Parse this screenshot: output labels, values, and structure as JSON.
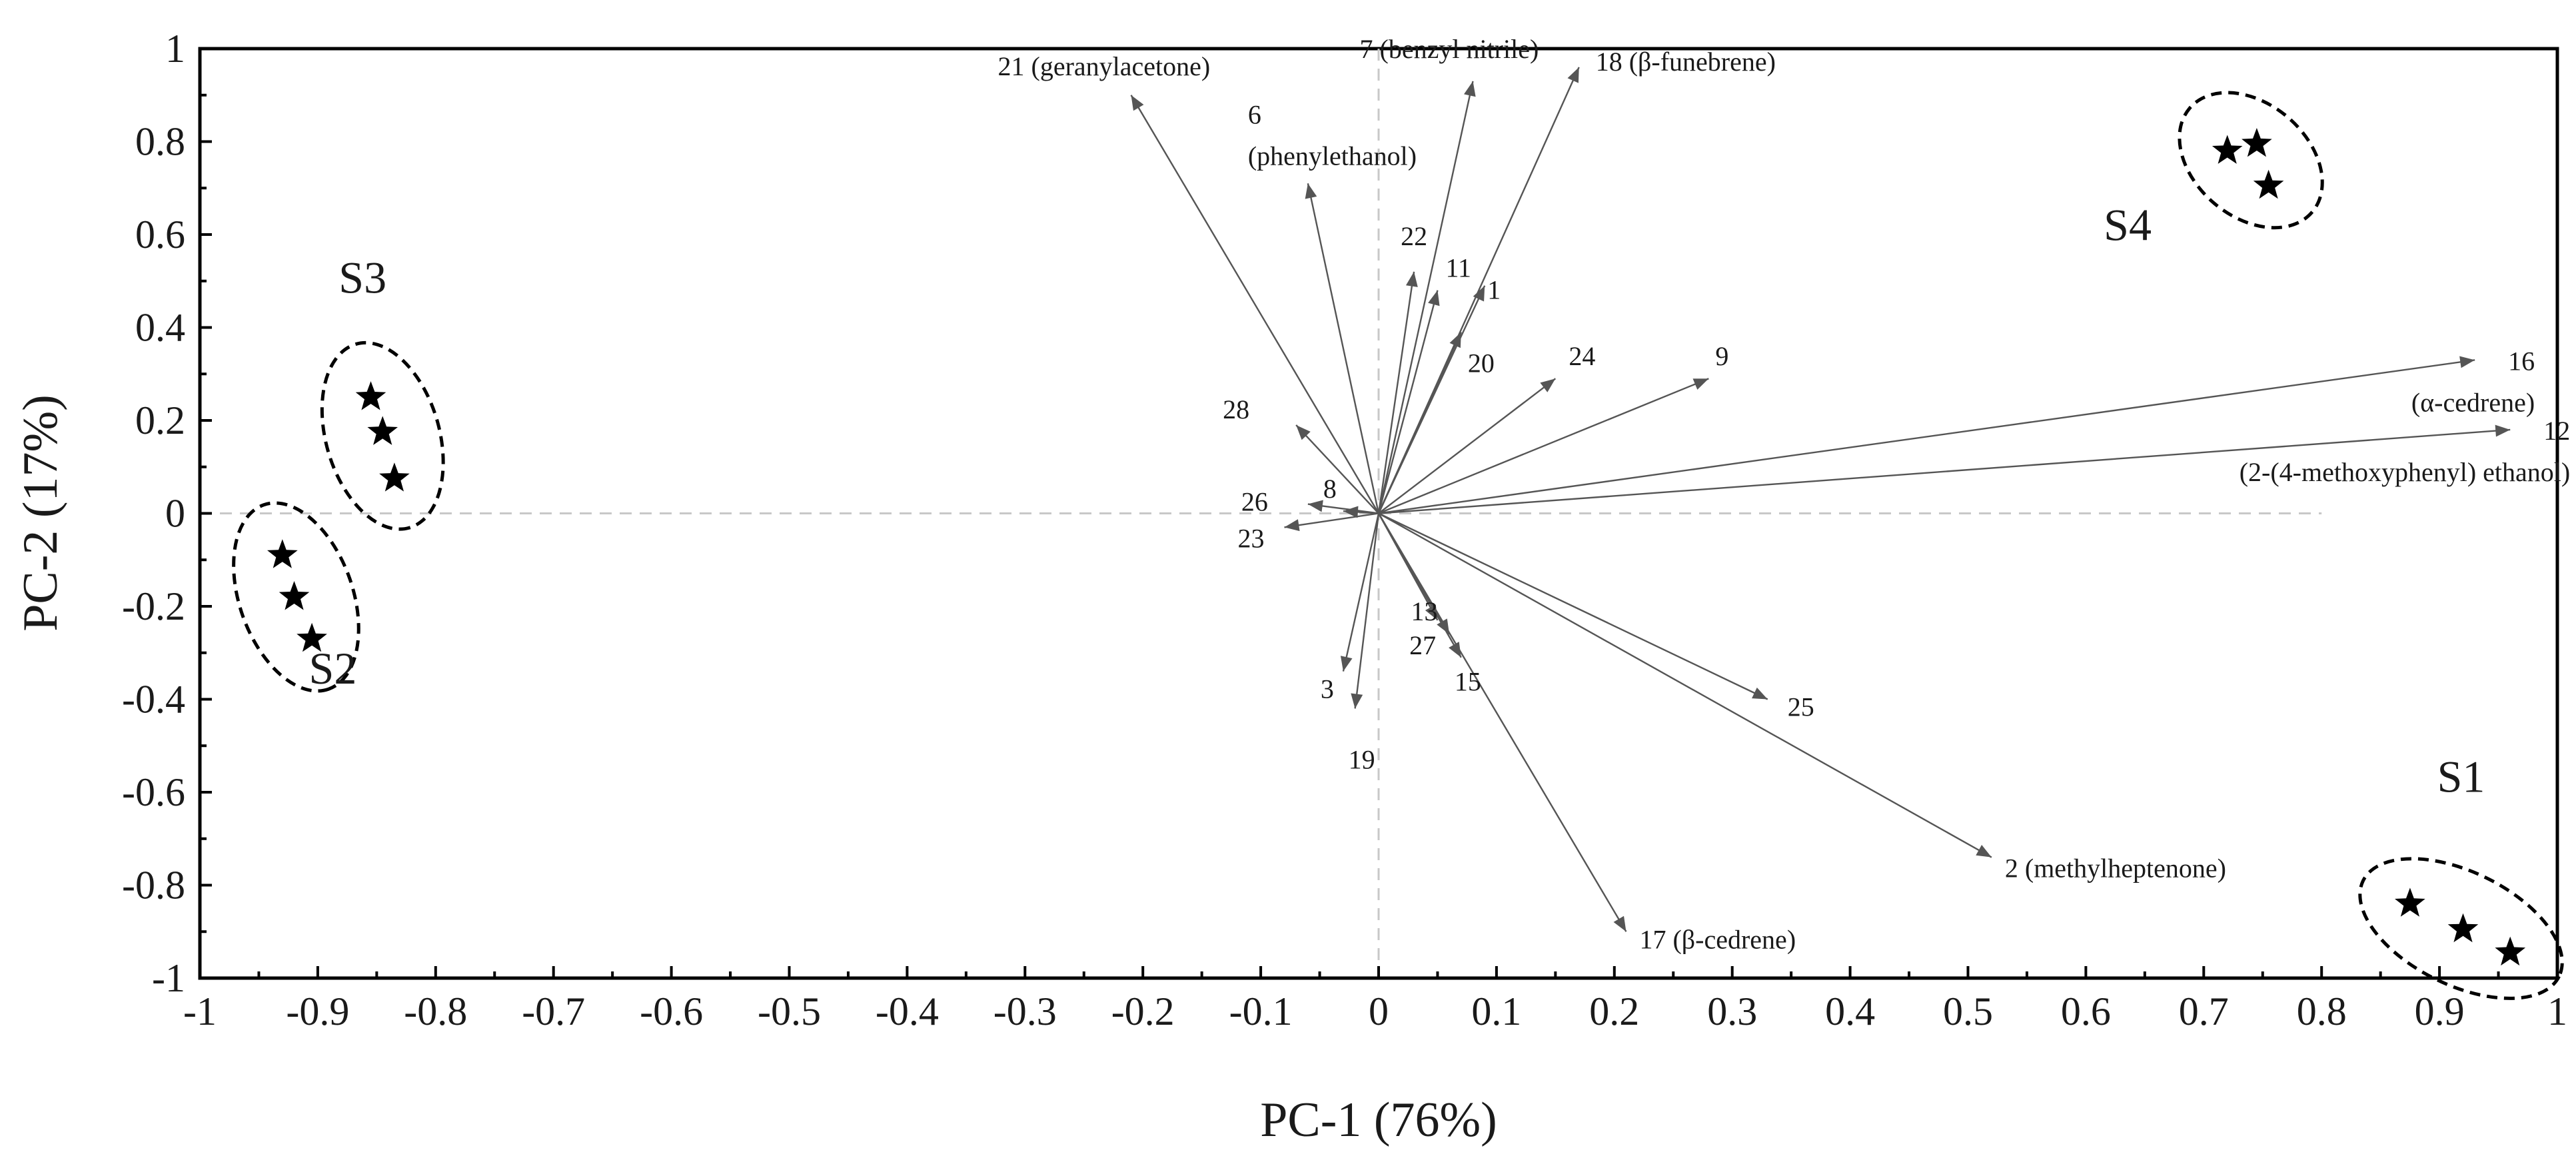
{
  "chart_data": {
    "type": "scatter",
    "subtype": "pca-biplot",
    "title": "",
    "xlabel": "PC-1 (76%)",
    "ylabel": "PC-2 (17%)",
    "xlim": [
      -1,
      1
    ],
    "ylim": [
      -1,
      1
    ],
    "x_ticks": [
      -1,
      -0.9,
      -0.8,
      -0.7,
      -0.6,
      -0.5,
      -0.4,
      -0.3,
      -0.2,
      -0.1,
      0,
      0.1,
      0.2,
      0.3,
      0.4,
      0.5,
      0.6,
      0.7,
      0.8,
      0.9,
      1
    ],
    "x_tick_labels": [
      "-1",
      "-0.9",
      "-0.8",
      "-0.7",
      "-0.6",
      "-0.5",
      "-0.4",
      "-0.3",
      "-0.2",
      "-0.1",
      "0",
      "0.1",
      "0.2",
      "0.3",
      "0.4",
      "0.5",
      "0.6",
      "0.7",
      "0.8",
      "0.9",
      "1"
    ],
    "y_ticks": [
      1,
      0.8,
      0.6,
      0.4,
      0.2,
      0,
      -0.2,
      -0.4,
      -0.6,
      -0.8,
      -1
    ],
    "y_tick_labels": [
      "1",
      "0.8",
      "0.6",
      "0.4",
      "0.2",
      "0",
      "-0.2",
      "-0.4",
      "-0.6",
      "-0.8",
      "-1"
    ],
    "groups": [
      {
        "name": "S1",
        "points": [
          [
            0.875,
            -0.84
          ],
          [
            0.92,
            -0.895
          ],
          [
            0.96,
            -0.945
          ]
        ]
      },
      {
        "name": "S2",
        "points": [
          [
            -0.93,
            -0.09
          ],
          [
            -0.92,
            -0.18
          ],
          [
            -0.905,
            -0.27
          ]
        ]
      },
      {
        "name": "S3",
        "points": [
          [
            -0.855,
            0.25
          ],
          [
            -0.845,
            0.175
          ],
          [
            -0.835,
            0.075
          ]
        ]
      },
      {
        "name": "S4",
        "points": [
          [
            0.72,
            0.78
          ],
          [
            0.745,
            0.795
          ],
          [
            0.755,
            0.705
          ]
        ]
      }
    ],
    "loadings": [
      {
        "id": "1",
        "lines": [
          "1"
        ],
        "x": 0.09,
        "y": 0.49
      },
      {
        "id": "2",
        "lines": [
          "2 (methylheptenone)"
        ],
        "x": 0.52,
        "y": -0.74
      },
      {
        "id": "3",
        "lines": [
          "3"
        ],
        "x": -0.03,
        "y": -0.34
      },
      {
        "id": "6",
        "lines": [
          "6",
          "(phenylethanol)"
        ],
        "x": -0.06,
        "y": 0.71
      },
      {
        "id": "7",
        "lines": [
          "7 (benzyl nitrile)"
        ],
        "x": 0.08,
        "y": 0.93
      },
      {
        "id": "8",
        "lines": [
          "8"
        ],
        "x": -0.03,
        "y": 0.005
      },
      {
        "id": "9",
        "lines": [
          "9"
        ],
        "x": 0.28,
        "y": 0.29
      },
      {
        "id": "11",
        "lines": [
          "11"
        ],
        "x": 0.05,
        "y": 0.48
      },
      {
        "id": "12",
        "lines": [
          "12",
          "(2-(4-methoxyphenyl) ethanol)"
        ],
        "x": 0.96,
        "y": 0.18
      },
      {
        "id": "13",
        "lines": [
          "13"
        ],
        "x": 0.05,
        "y": -0.23
      },
      {
        "id": "15",
        "lines": [
          "15"
        ],
        "x": 0.07,
        "y": -0.31
      },
      {
        "id": "16",
        "lines": [
          "16",
          "(α-cedrene)"
        ],
        "x": 0.93,
        "y": 0.33
      },
      {
        "id": "17",
        "lines": [
          "17 (β-cedrene)"
        ],
        "x": 0.21,
        "y": -0.9
      },
      {
        "id": "18",
        "lines": [
          "18 (β-funebrene)"
        ],
        "x": 0.17,
        "y": 0.96
      },
      {
        "id": "19",
        "lines": [
          "19"
        ],
        "x": -0.02,
        "y": -0.42
      },
      {
        "id": "20",
        "lines": [
          "20"
        ],
        "x": 0.07,
        "y": 0.39
      },
      {
        "id": "21",
        "lines": [
          "21 (geranylacetone)"
        ],
        "x": -0.21,
        "y": 0.9
      },
      {
        "id": "22",
        "lines": [
          "22"
        ],
        "x": 0.03,
        "y": 0.52
      },
      {
        "id": "23",
        "lines": [
          "23"
        ],
        "x": -0.08,
        "y": -0.03
      },
      {
        "id": "24",
        "lines": [
          "24"
        ],
        "x": 0.15,
        "y": 0.29
      },
      {
        "id": "25",
        "lines": [
          "25"
        ],
        "x": 0.33,
        "y": -0.4
      },
      {
        "id": "26",
        "lines": [
          "26"
        ],
        "x": -0.06,
        "y": 0.02
      },
      {
        "id": "27",
        "lines": [
          "27"
        ],
        "x": 0.06,
        "y": -0.26
      },
      {
        "id": "28",
        "lines": [
          "28"
        ],
        "x": -0.07,
        "y": 0.19
      }
    ],
    "grid": false,
    "zero_lines": true,
    "legend": "none"
  }
}
